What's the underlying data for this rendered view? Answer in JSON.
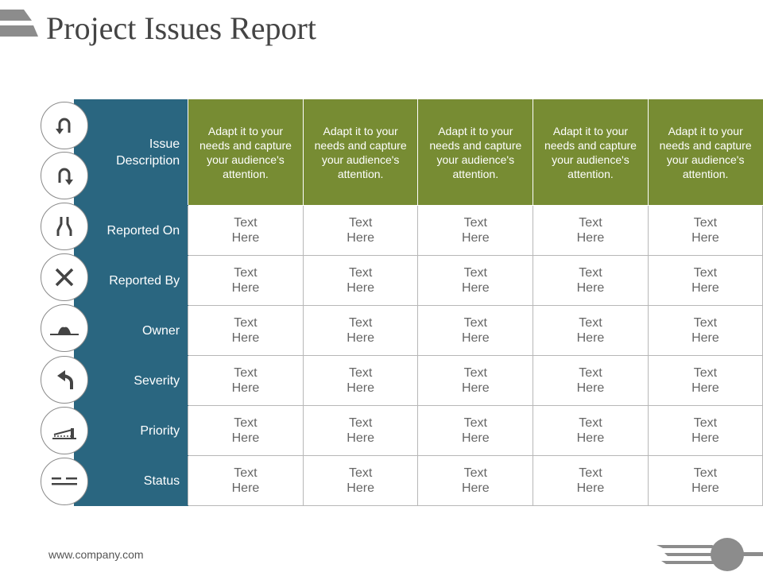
{
  "title": "Project Issues Report",
  "footer": "www.company.com",
  "colors": {
    "label_bg": "#2a6680",
    "header_bg": "#778c33",
    "grid": "#b7b7b7"
  },
  "header": {
    "row_label": "Issue Description",
    "cells": [
      "Adapt it to your needs and capture your audience's attention.",
      "Adapt it to your needs and capture your audience's attention.",
      "Adapt it to your needs and capture your audience's attention.",
      "Adapt it to your needs and capture your audience's attention.",
      "Adapt it to your needs and capture your audience's attention."
    ]
  },
  "rows": [
    {
      "label": "Reported On",
      "icon": "merge-lanes-icon",
      "cells": [
        [
          "Text",
          "Here"
        ],
        [
          "Text",
          "Here"
        ],
        [
          "Text",
          "Here"
        ],
        [
          "Text",
          "Here"
        ],
        [
          "Text",
          "Here"
        ]
      ]
    },
    {
      "label": "Reported By",
      "icon": "cross-icon",
      "cells": [
        [
          "Text",
          "Here"
        ],
        [
          "Text",
          "Here"
        ],
        [
          "Text",
          "Here"
        ],
        [
          "Text",
          "Here"
        ],
        [
          "Text",
          "Here"
        ]
      ]
    },
    {
      "label": "Owner",
      "icon": "road-bump-icon",
      "cells": [
        [
          "Text",
          "Here"
        ],
        [
          "Text",
          "Here"
        ],
        [
          "Text",
          "Here"
        ],
        [
          "Text",
          "Here"
        ],
        [
          "Text",
          "Here"
        ]
      ]
    },
    {
      "label": "Severity",
      "icon": "turn-left-arrow-icon",
      "cells": [
        [
          "Text",
          "Here"
        ],
        [
          "Text",
          "Here"
        ],
        [
          "Text",
          "Here"
        ],
        [
          "Text",
          "Here"
        ],
        [
          "Text",
          "Here"
        ]
      ]
    },
    {
      "label": "Priority",
      "icon": "barrier-gate-icon",
      "cells": [
        [
          "Text",
          "Here"
        ],
        [
          "Text",
          "Here"
        ],
        [
          "Text",
          "Here"
        ],
        [
          "Text",
          "Here"
        ],
        [
          "Text",
          "Here"
        ]
      ]
    },
    {
      "label": "Status",
      "icon": "lane-lines-icon",
      "cells": [
        [
          "Text",
          "Here"
        ],
        [
          "Text",
          "Here"
        ],
        [
          "Text",
          "Here"
        ],
        [
          "Text",
          "Here"
        ],
        [
          "Text",
          "Here"
        ]
      ]
    }
  ],
  "header_icons": [
    "u-turn-up-icon",
    "u-turn-down-icon"
  ]
}
